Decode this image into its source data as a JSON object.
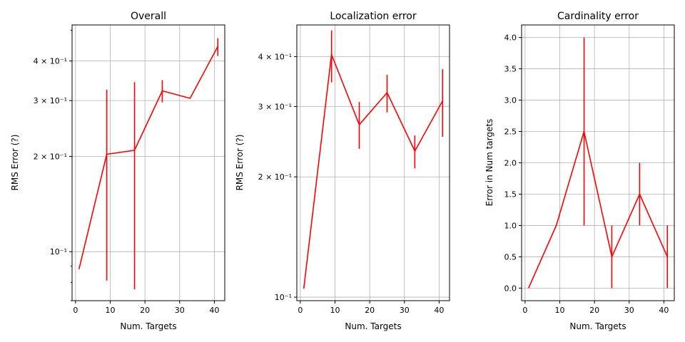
{
  "chart_data": [
    {
      "type": "line",
      "title": "Overall",
      "xlabel": "Num. Targets",
      "ylabel": "RMS Error (?)",
      "yscale": "log",
      "xlim": [
        -1,
        43
      ],
      "ylim": [
        0.07,
        0.52
      ],
      "grid": true,
      "x": [
        1,
        9,
        17,
        25,
        33,
        41
      ],
      "y": [
        0.088,
        0.203,
        0.209,
        0.322,
        0.305,
        0.445
      ],
      "yerr_low": [
        null,
        0.081,
        0.076,
        0.296,
        null,
        0.415
      ],
      "yerr_high": [
        null,
        0.325,
        0.343,
        0.348,
        null,
        0.472
      ],
      "xticks": [
        0,
        10,
        20,
        30,
        40
      ],
      "xtick_labels": [
        "0",
        "10",
        "20",
        "30",
        "40"
      ],
      "yticks": [
        0.1,
        0.2,
        0.3,
        0.4
      ],
      "ytick_labels": [
        "10⁻¹",
        "2 × 10⁻¹",
        "3 × 10⁻¹",
        "4 × 10⁻¹"
      ],
      "color": "#ff0000"
    },
    {
      "type": "line",
      "title": "Localization error",
      "xlabel": "Num. Targets",
      "ylabel": "RMS Error (?)",
      "yscale": "log",
      "xlim": [
        -1,
        43
      ],
      "ylim": [
        0.098,
        0.48
      ],
      "grid": true,
      "x": [
        1,
        9,
        17,
        25,
        33,
        41
      ],
      "y": [
        0.105,
        0.405,
        0.27,
        0.325,
        0.232,
        0.31
      ],
      "yerr_low": [
        null,
        0.345,
        0.235,
        0.29,
        0.21,
        0.252
      ],
      "yerr_high": [
        null,
        0.465,
        0.308,
        0.36,
        0.254,
        0.372
      ],
      "xticks": [
        0,
        10,
        20,
        30,
        40
      ],
      "xtick_labels": [
        "0",
        "10",
        "20",
        "30",
        "40"
      ],
      "yticks": [
        0.1,
        0.2,
        0.3,
        0.4
      ],
      "ytick_labels": [
        "10⁻¹",
        "2 × 10⁻¹",
        "3 × 10⁻¹",
        "4 × 10⁻¹"
      ],
      "color": "#ff0000"
    },
    {
      "type": "line",
      "title": "Cardinality error",
      "xlabel": "Num. Targets",
      "ylabel": "Error in Num targets",
      "yscale": "linear",
      "xlim": [
        -1,
        43
      ],
      "ylim": [
        -0.2,
        4.2
      ],
      "grid": true,
      "x": [
        1,
        9,
        17,
        25,
        33,
        41
      ],
      "y": [
        0.0,
        1.0,
        2.5,
        0.5,
        1.5,
        0.5
      ],
      "yerr_low": [
        null,
        null,
        1.0,
        0.0,
        1.0,
        0.0
      ],
      "yerr_high": [
        null,
        null,
        4.0,
        1.0,
        2.0,
        1.0
      ],
      "xticks": [
        0,
        10,
        20,
        30,
        40
      ],
      "xtick_labels": [
        "0",
        "10",
        "20",
        "30",
        "40"
      ],
      "yticks": [
        0.0,
        0.5,
        1.0,
        1.5,
        2.0,
        2.5,
        3.0,
        3.5,
        4.0
      ],
      "ytick_labels": [
        "0.0",
        "0.5",
        "1.0",
        "1.5",
        "2.0",
        "2.5",
        "3.0",
        "3.5",
        "4.0"
      ],
      "color": "#ff0000"
    }
  ]
}
